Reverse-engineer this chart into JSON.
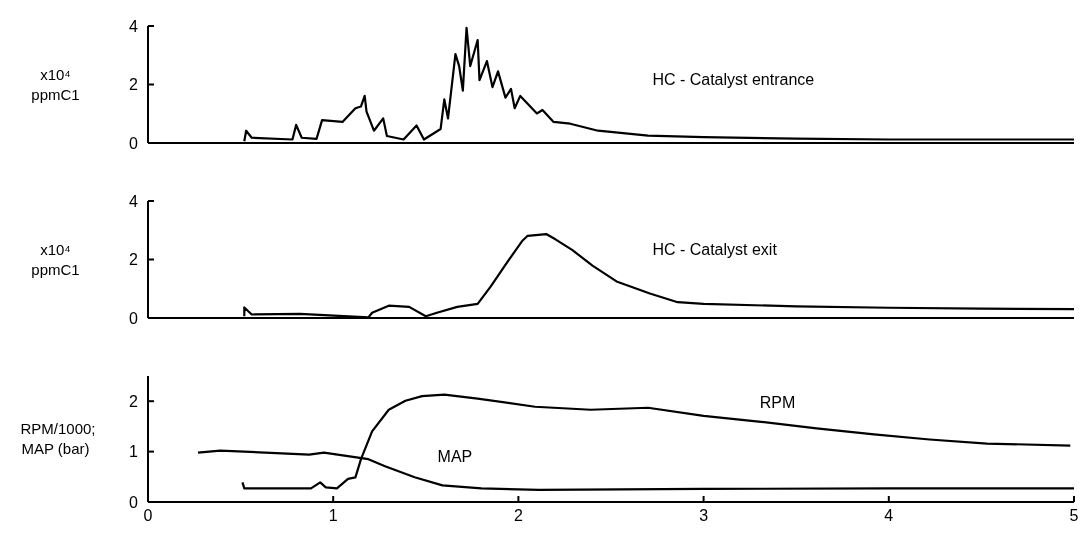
{
  "chart_data": [
    {
      "type": "line",
      "ylabel": "x10⁴ ppmC1",
      "xlim": [
        0,
        5
      ],
      "xticks": [
        0,
        1,
        2,
        3,
        4,
        5
      ],
      "ylim": [
        0,
        4
      ],
      "yticks": [
        0,
        2,
        4
      ],
      "tick_labels": "y",
      "grid": false,
      "marker": "none",
      "line_style": "solid",
      "series": [
        {
          "name": "HC - Catalyst entrance",
          "color": "#000000",
          "x": [
            0.52,
            0.53,
            0.56,
            0.78,
            0.8,
            0.83,
            0.91,
            0.94,
            1.05,
            1.12,
            1.15,
            1.17,
            1.18,
            1.22,
            1.27,
            1.29,
            1.38,
            1.45,
            1.49,
            1.58,
            1.6,
            1.62,
            1.66,
            1.68,
            1.7,
            1.72,
            1.74,
            1.78,
            1.79,
            1.83,
            1.86,
            1.89,
            1.93,
            1.96,
            1.98,
            2.01,
            2.1,
            2.13,
            2.19,
            2.28,
            2.43,
            2.7,
            3.0,
            3.5,
            4.0,
            4.5,
            5.0
          ],
          "values": [
            0.06,
            0.42,
            0.18,
            0.12,
            0.62,
            0.18,
            0.14,
            0.78,
            0.72,
            1.19,
            1.25,
            1.61,
            1.07,
            0.42,
            0.84,
            0.24,
            0.12,
            0.6,
            0.12,
            0.48,
            1.49,
            0.84,
            3.04,
            2.63,
            1.79,
            3.94,
            2.63,
            3.52,
            2.15,
            2.8,
            1.91,
            2.45,
            1.55,
            1.85,
            1.19,
            1.61,
            1.01,
            1.13,
            0.72,
            0.66,
            0.42,
            0.25,
            0.2,
            0.15,
            0.12,
            0.12,
            0.12
          ]
        }
      ]
    },
    {
      "type": "line",
      "ylabel": "x10⁴ ppmC1",
      "xlim": [
        0,
        5
      ],
      "xticks": [
        0,
        1,
        2,
        3,
        4,
        5
      ],
      "ylim": [
        0,
        4
      ],
      "yticks": [
        0,
        2,
        4
      ],
      "tick_labels": "y",
      "grid": false,
      "marker": "none",
      "line_style": "solid",
      "series": [
        {
          "name": "HC - Catalyst exit",
          "color": "#000000",
          "x": [
            0.52,
            0.52,
            0.56,
            0.82,
            1.19,
            1.21,
            1.3,
            1.41,
            1.5,
            1.56,
            1.67,
            1.78,
            1.85,
            1.94,
            2.02,
            2.05,
            2.15,
            2.2,
            2.29,
            2.4,
            2.53,
            2.71,
            2.86,
            3.0,
            3.5,
            4.0,
            4.5,
            5.0
          ],
          "values": [
            0.06,
            0.36,
            0.12,
            0.14,
            0.02,
            0.18,
            0.42,
            0.38,
            0.06,
            0.18,
            0.38,
            0.48,
            1.07,
            1.91,
            2.63,
            2.81,
            2.87,
            2.69,
            2.33,
            1.79,
            1.25,
            0.84,
            0.54,
            0.48,
            0.4,
            0.35,
            0.32,
            0.3
          ]
        }
      ]
    },
    {
      "type": "line",
      "ylabel": "RPM/1000; MAP (bar)",
      "xlim": [
        0,
        5
      ],
      "xticks": [
        0,
        1,
        2,
        3,
        4,
        5
      ],
      "ylim": [
        0,
        2.5
      ],
      "yticks": [
        0,
        1,
        2
      ],
      "grid": false,
      "marker": "none",
      "line_style": "solid",
      "series": [
        {
          "name": "RPM",
          "color": "#000000",
          "x": [
            0.51,
            0.52,
            0.88,
            0.93,
            0.96,
            1.02,
            1.08,
            1.12,
            1.15,
            1.21,
            1.3,
            1.39,
            1.48,
            1.6,
            1.78,
            2.09,
            2.39,
            2.7,
            3.0,
            3.31,
            3.61,
            3.92,
            4.22,
            4.53,
            4.98
          ],
          "values": [
            0.39,
            0.27,
            0.27,
            0.39,
            0.29,
            0.27,
            0.46,
            0.49,
            0.85,
            1.4,
            1.83,
            2.01,
            2.1,
            2.13,
            2.05,
            1.89,
            1.83,
            1.87,
            1.71,
            1.59,
            1.46,
            1.34,
            1.24,
            1.16,
            1.12
          ]
        },
        {
          "name": "MAP",
          "color": "#000000",
          "x": [
            0.27,
            0.39,
            0.87,
            0.95,
            1.19,
            1.28,
            1.44,
            1.59,
            1.8,
            2.11,
            3.0,
            4.0,
            5.0
          ],
          "values": [
            0.98,
            1.02,
            0.94,
            0.98,
            0.85,
            0.71,
            0.49,
            0.33,
            0.27,
            0.24,
            0.26,
            0.27,
            0.27
          ]
        }
      ]
    }
  ]
}
